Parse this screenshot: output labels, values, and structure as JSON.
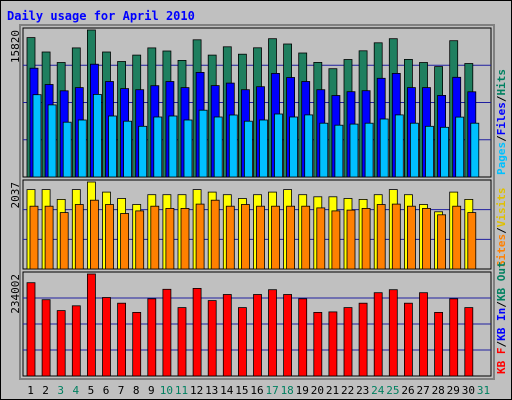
{
  "title": "Daily usage for April 2010",
  "chart_data": [
    {
      "type": "bar",
      "panel": "top",
      "ymax_label": "15820",
      "right_labels": [
        {
          "text": "Pages",
          "color": "#00c0ff"
        },
        {
          "text": "/",
          "color": "#000000"
        },
        {
          "text": "Files",
          "color": "#0000ff"
        },
        {
          "text": "/",
          "color": "#000000"
        },
        {
          "text": "Hits",
          "color": "#008060"
        }
      ],
      "x": [
        1,
        2,
        3,
        4,
        5,
        6,
        7,
        8,
        9,
        10,
        11,
        12,
        13,
        14,
        15,
        16,
        17,
        18,
        19,
        20,
        21,
        22,
        23,
        24,
        25,
        26,
        27,
        28,
        29,
        30,
        31
      ],
      "ylim": [
        0,
        15820
      ],
      "series": [
        {
          "name": "Hits",
          "color": "#1f7f5f",
          "values": [
            15000,
            13450,
            12320,
            13890,
            15820,
            13450,
            12430,
            13120,
            13890,
            13560,
            12550,
            14760,
            13120,
            14010,
            13220,
            13900,
            14880,
            14310,
            13340,
            12330,
            11660,
            12650,
            13580,
            14440,
            14880,
            12660,
            12320,
            11880,
            14670,
            12210,
            null
          ]
        },
        {
          "name": "Files",
          "color": "#0000ff",
          "values": [
            11710,
            9950,
            9280,
            9620,
            12140,
            10280,
            9510,
            9400,
            9830,
            10280,
            9620,
            11260,
            9840,
            10110,
            9390,
            9720,
            11150,
            10710,
            10280,
            9390,
            8770,
            9180,
            9290,
            10620,
            11150,
            9620,
            9620,
            8780,
            10730,
            9170,
            null
          ]
        },
        {
          "name": "Pages",
          "color": "#00c0ff",
          "values": [
            8860,
            7760,
            5900,
            6130,
            8890,
            6570,
            6010,
            5460,
            6460,
            6570,
            6130,
            7190,
            6460,
            6670,
            6010,
            6130,
            6780,
            6460,
            6680,
            5790,
            5570,
            5690,
            5790,
            6240,
            6680,
            5790,
            5460,
            5350,
            6450,
            5790,
            null
          ]
        }
      ]
    },
    {
      "type": "bar",
      "panel": "middle",
      "ymax_label": "2037",
      "right_labels": [
        {
          "text": "Sites",
          "color": "#ff8000"
        },
        {
          "text": "/",
          "color": "#000000"
        },
        {
          "text": "Visits",
          "color": "#e0c000"
        }
      ],
      "x": [
        1,
        2,
        3,
        4,
        5,
        6,
        7,
        8,
        9,
        10,
        11,
        12,
        13,
        14,
        15,
        16,
        17,
        18,
        19,
        20,
        21,
        22,
        23,
        24,
        25,
        26,
        27,
        28,
        29,
        30,
        31
      ],
      "ylim": [
        0,
        2037
      ],
      "series": [
        {
          "name": "Visits",
          "color": "#ffff00",
          "values": [
            1860,
            1860,
            1630,
            1860,
            2037,
            1800,
            1650,
            1510,
            1740,
            1740,
            1740,
            1860,
            1800,
            1740,
            1650,
            1740,
            1800,
            1860,
            1740,
            1690,
            1690,
            1650,
            1630,
            1740,
            1860,
            1740,
            1510,
            1340,
            1800,
            1630,
            null
          ]
        },
        {
          "name": "Sites",
          "color": "#ff8000",
          "values": [
            1470,
            1470,
            1320,
            1510,
            1610,
            1510,
            1300,
            1360,
            1470,
            1420,
            1420,
            1520,
            1610,
            1470,
            1510,
            1470,
            1470,
            1470,
            1470,
            1430,
            1360,
            1380,
            1420,
            1510,
            1520,
            1470,
            1420,
            1270,
            1470,
            1320,
            null
          ]
        }
      ]
    },
    {
      "type": "bar",
      "panel": "bottom",
      "ymax_label": "234002",
      "right_labels": [
        {
          "text": "KB F",
          "color": "#ff0000"
        },
        {
          "text": "/",
          "color": "#000000"
        },
        {
          "text": "KB In",
          "color": "#0000ff"
        },
        {
          "text": "/",
          "color": "#000000"
        },
        {
          "text": "KB Out",
          "color": "#008060"
        }
      ],
      "x": [
        1,
        2,
        3,
        4,
        5,
        6,
        7,
        8,
        9,
        10,
        11,
        12,
        13,
        14,
        15,
        16,
        17,
        18,
        19,
        20,
        21,
        22,
        23,
        24,
        25,
        26,
        27,
        28,
        29,
        30,
        31
      ],
      "ylim": [
        0,
        234002
      ],
      "series": [
        {
          "name": "KB F",
          "color": "#ff0000",
          "values": [
            214000,
            175000,
            150000,
            161000,
            234002,
            180000,
            167000,
            146000,
            177000,
            199000,
            157000,
            201000,
            173000,
            187000,
            157000,
            187000,
            198000,
            187000,
            177000,
            146000,
            147000,
            157000,
            167000,
            191000,
            198000,
            167000,
            191000,
            146000,
            177000,
            157000,
            null
          ]
        }
      ]
    }
  ],
  "x_labels": [
    {
      "text": "1",
      "color": "#000000"
    },
    {
      "text": "2",
      "color": "#000000"
    },
    {
      "text": "3",
      "color": "#008060"
    },
    {
      "text": "4",
      "color": "#008060"
    },
    {
      "text": "5",
      "color": "#000000"
    },
    {
      "text": "6",
      "color": "#000000"
    },
    {
      "text": "7",
      "color": "#000000"
    },
    {
      "text": "8",
      "color": "#000000"
    },
    {
      "text": "9",
      "color": "#000000"
    },
    {
      "text": "10",
      "color": "#008060"
    },
    {
      "text": "11",
      "color": "#008060"
    },
    {
      "text": "12",
      "color": "#000000"
    },
    {
      "text": "13",
      "color": "#000000"
    },
    {
      "text": "14",
      "color": "#000000"
    },
    {
      "text": "15",
      "color": "#000000"
    },
    {
      "text": "16",
      "color": "#000000"
    },
    {
      "text": "17",
      "color": "#008060"
    },
    {
      "text": "18",
      "color": "#008060"
    },
    {
      "text": "19",
      "color": "#000000"
    },
    {
      "text": "20",
      "color": "#000000"
    },
    {
      "text": "21",
      "color": "#000000"
    },
    {
      "text": "22",
      "color": "#000000"
    },
    {
      "text": "23",
      "color": "#000000"
    },
    {
      "text": "24",
      "color": "#008060"
    },
    {
      "text": "25",
      "color": "#008060"
    },
    {
      "text": "26",
      "color": "#000000"
    },
    {
      "text": "27",
      "color": "#000000"
    },
    {
      "text": "28",
      "color": "#000000"
    },
    {
      "text": "29",
      "color": "#000000"
    },
    {
      "text": "30",
      "color": "#000000"
    },
    {
      "text": "31",
      "color": "#008060"
    }
  ],
  "colors": {
    "background": "#c0c0c0",
    "title": "#0000ff",
    "grid": "#1f1f9f",
    "plot_bg": "#c0c0c0"
  },
  "grid": true
}
